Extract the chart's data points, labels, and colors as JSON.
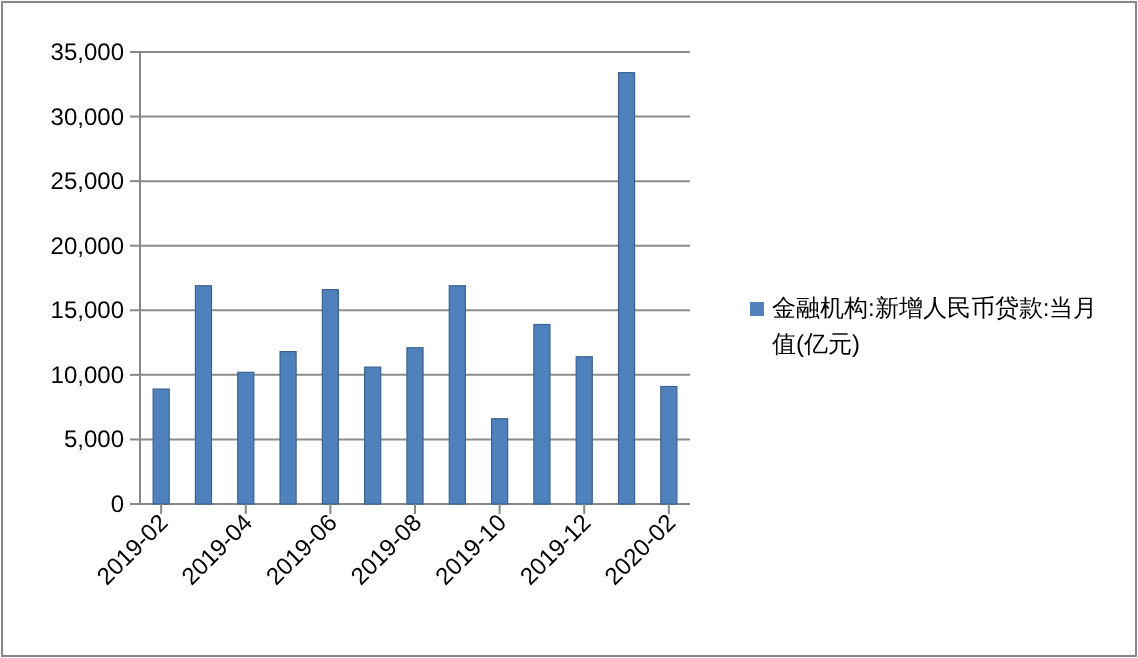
{
  "chart_data": {
    "type": "bar",
    "categories": [
      "2019-02",
      null,
      "2019-04",
      null,
      "2019-06",
      null,
      "2019-08",
      null,
      "2019-10",
      null,
      "2019-12",
      null,
      "2020-02"
    ],
    "series": [
      {
        "name": "金融机构:新增人民币贷款:当月值(亿元)",
        "color": "#4f81bd",
        "values": [
          8900,
          16900,
          10200,
          11800,
          16600,
          10600,
          12100,
          16900,
          6600,
          13900,
          11400,
          33400,
          9100
        ]
      }
    ],
    "ylim": [
      0,
      35000
    ],
    "yticks": [
      0,
      {
        "value": 5000,
        "label": "5,000"
      },
      {
        "value": 10000,
        "label": "10,000"
      },
      {
        "value": 15000,
        "label": "15,000"
      },
      {
        "value": 20000,
        "label": "20,000"
      },
      {
        "value": 25000,
        "label": "25,000"
      },
      {
        "value": 30000,
        "label": "30,000"
      },
      {
        "value": 35000,
        "label": "35,000"
      }
    ],
    "grid": "y",
    "legend": "right"
  }
}
